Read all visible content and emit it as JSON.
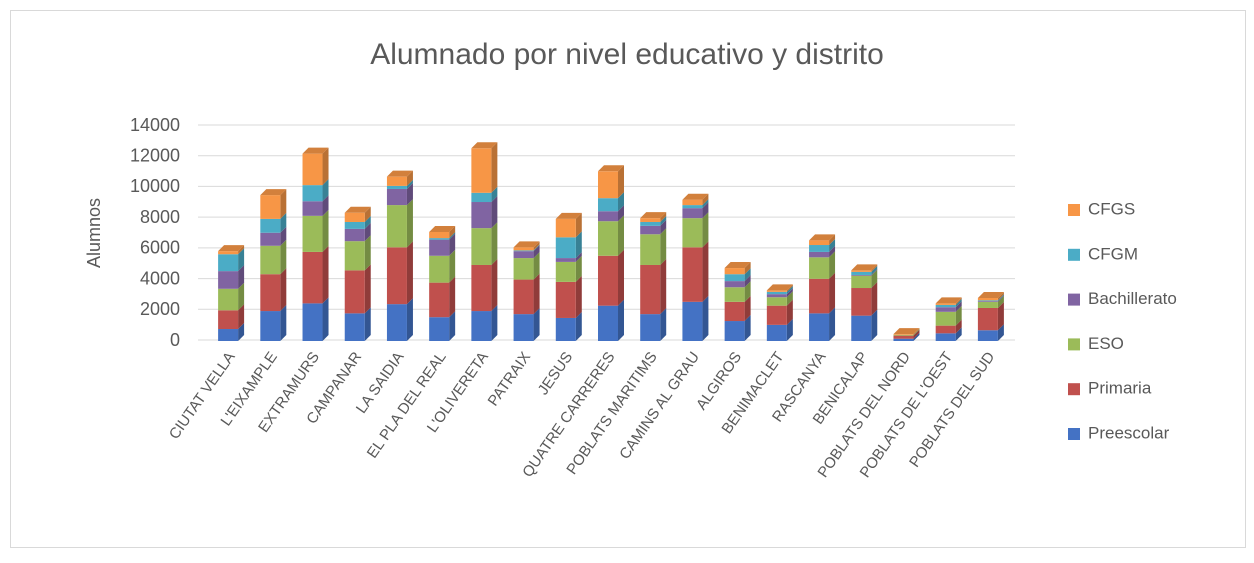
{
  "chart_data": {
    "type": "bar3d_stacked",
    "title": "Alumnado por nivel educativo y distrito",
    "y_label": "Alumnos",
    "categories": [
      "CIUTAT VELLA",
      "L'EIXAMPLE",
      "EXTRAMURS",
      "CAMPANAR",
      "LA SAIDIA",
      "EL PLA DEL REAL",
      "L'OLIVERETA",
      "PATRAIX",
      "JESUS",
      "QUATRE CARRERES",
      "POBLATS MARITIMS",
      "CAMINS AL GRAU",
      "ALGIROS",
      "BENIMACLET",
      "RASCANYA",
      "BENICALAP",
      "POBLATS DEL NORD",
      "POBLATS DE L'OEST",
      "POBLATS DEL SUD"
    ],
    "series": [
      {
        "name": "Preescolar",
        "color": "#4472c4",
        "values": [
          780,
          1950,
          2450,
          1800,
          2400,
          1550,
          1950,
          1750,
          1500,
          2300,
          1750,
          2550,
          1300,
          1050,
          1800,
          1650,
          150,
          500,
          700
        ]
      },
      {
        "name": "Primaria",
        "color": "#c0504d",
        "values": [
          1220,
          2400,
          3350,
          2800,
          3700,
          2250,
          3000,
          2250,
          2350,
          3250,
          3200,
          3550,
          1250,
          1250,
          2250,
          1800,
          200,
          500,
          1450
        ]
      },
      {
        "name": "ESO",
        "color": "#9bbb59",
        "values": [
          1400,
          1850,
          2350,
          1900,
          2750,
          1750,
          2400,
          1400,
          1300,
          2250,
          2000,
          1900,
          950,
          550,
          1400,
          800,
          50,
          900,
          400
        ]
      },
      {
        "name": "Bachillerato",
        "color": "#8064a2",
        "values": [
          1150,
          850,
          950,
          800,
          1050,
          1050,
          1700,
          450,
          250,
          650,
          550,
          650,
          400,
          200,
          350,
          50,
          0,
          300,
          50
        ]
      },
      {
        "name": "CFGM",
        "color": "#4bacc6",
        "values": [
          1100,
          900,
          1050,
          450,
          200,
          100,
          600,
          50,
          1350,
          850,
          250,
          200,
          450,
          150,
          450,
          200,
          0,
          150,
          50
        ]
      },
      {
        "name": "CFGS",
        "color": "#f79646",
        "values": [
          200,
          1550,
          2050,
          600,
          600,
          400,
          2900,
          200,
          1200,
          1750,
          250,
          350,
          400,
          100,
          300,
          100,
          50,
          100,
          150
        ]
      }
    ],
    "ylim": [
      0,
      14000
    ],
    "yticks": [
      0,
      2000,
      4000,
      6000,
      8000,
      10000,
      12000,
      14000
    ],
    "grid": true,
    "legend": "right"
  }
}
